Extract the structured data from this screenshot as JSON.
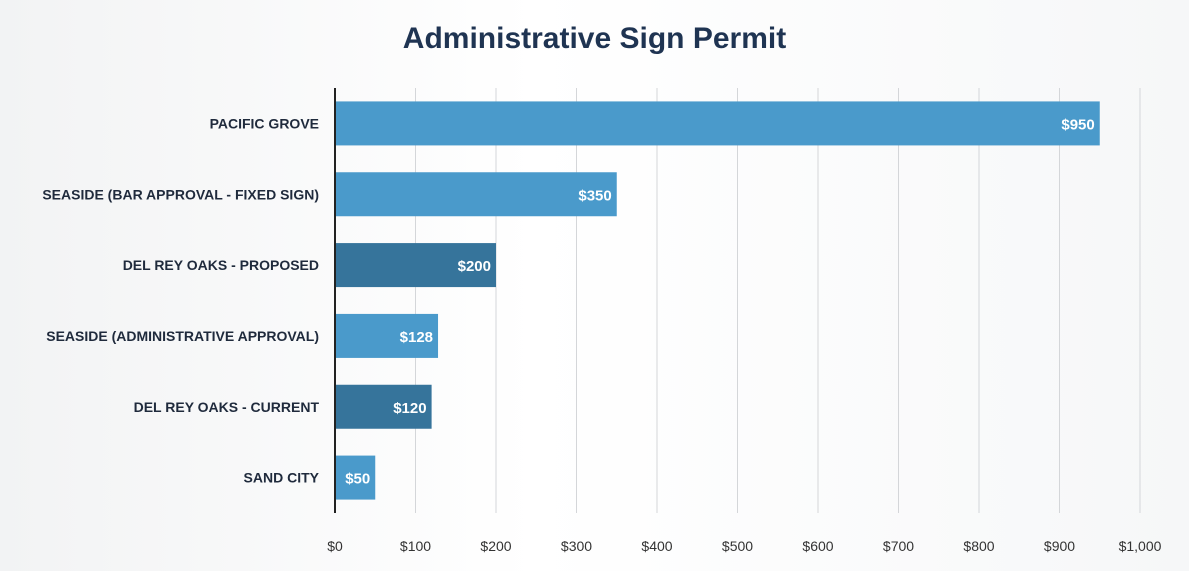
{
  "chart_data": {
    "type": "bar",
    "orientation": "horizontal",
    "title": "Administrative Sign Permit",
    "categories": [
      "PACIFIC GROVE",
      "SEASIDE (BAR APPROVAL - FIXED SIGN)",
      "DEL REY OAKS - PROPOSED",
      "SEASIDE (ADMINISTRATIVE APPROVAL)",
      "DEL REY OAKS - CURRENT",
      "SAND CITY"
    ],
    "values": [
      950,
      350,
      200,
      128,
      120,
      50
    ],
    "data_labels": [
      "$950",
      "$350",
      "$200",
      "$128",
      "$120",
      "$50"
    ],
    "bar_colors": [
      "#4a9acb",
      "#4a9acb",
      "#36749b",
      "#4a9acb",
      "#36749b",
      "#4a9acb"
    ],
    "xlim": [
      0,
      1000
    ],
    "x_ticks": [
      0,
      100,
      200,
      300,
      400,
      500,
      600,
      700,
      800,
      900,
      1000
    ],
    "x_tick_labels": [
      "$0",
      "$100",
      "$200",
      "$300",
      "$400",
      "$500",
      "$600",
      "$700",
      "$800",
      "$900",
      "$1,000"
    ],
    "xlabel": "",
    "ylabel": "",
    "grid": "vertical",
    "legend": "none"
  }
}
